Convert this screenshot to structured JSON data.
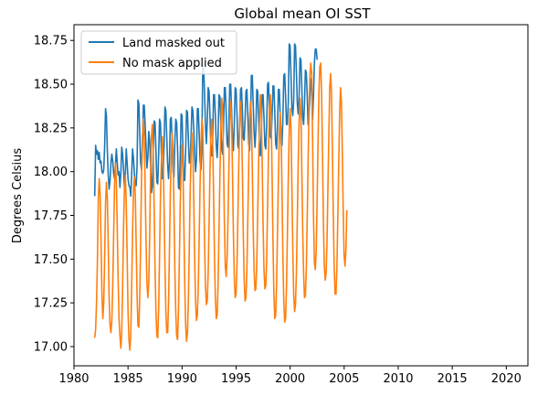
{
  "chart_data": {
    "type": "line",
    "title": "Global mean OI SST",
    "xlabel": "",
    "ylabel": "Degrees Celsius",
    "xlim": [
      1980,
      2022
    ],
    "ylim": [
      16.89,
      18.84
    ],
    "x_ticks": [
      1980,
      1985,
      1990,
      1995,
      2000,
      2005,
      2010,
      2015,
      2020
    ],
    "y_ticks": [
      17.0,
      17.25,
      17.5,
      17.75,
      18.0,
      18.25,
      18.5,
      18.75
    ],
    "x_tick_labels": [
      "1980",
      "1985",
      "1990",
      "1995",
      "2000",
      "2005",
      "2010",
      "2015",
      "2020"
    ],
    "y_tick_labels": [
      "17.00",
      "17.25",
      "17.50",
      "17.75",
      "18.00",
      "18.25",
      "18.50",
      "18.75"
    ],
    "grid": false,
    "legend_position": "top-left",
    "sampling": "monthly",
    "x_start": 1981.92,
    "x_step": 0.0833,
    "colors": {
      "land_masked": "#1f77b4",
      "no_mask": "#ff7f0e"
    },
    "series": [
      {
        "name": "Land masked out",
        "color": "#1f77b4",
        "values": [
          17.86,
          18.15,
          18.1,
          18.12,
          18.07,
          18.11,
          18.05,
          18.06,
          18.0,
          17.99,
          18.01,
          18.14,
          18.36,
          18.32,
          18.12,
          17.98,
          17.9,
          17.95,
          18.05,
          18.1,
          18.06,
          17.99,
          17.96,
          18.04,
          18.13,
          18.05,
          17.98,
          18.0,
          17.91,
          17.99,
          18.14,
          18.1,
          18.01,
          17.91,
          17.98,
          18.13,
          18.05,
          17.96,
          17.92,
          17.91,
          17.86,
          17.98,
          18.13,
          18.08,
          17.99,
          17.92,
          17.92,
          18.03,
          18.41,
          18.39,
          18.22,
          18.05,
          18.01,
          18.14,
          18.38,
          18.38,
          18.27,
          18.14,
          18.02,
          18.08,
          18.23,
          18.18,
          18.05,
          17.88,
          17.92,
          18.12,
          18.29,
          18.28,
          18.12,
          17.94,
          17.93,
          18.1,
          18.3,
          18.28,
          18.11,
          17.96,
          17.97,
          18.15,
          18.37,
          18.35,
          18.2,
          18.04,
          17.96,
          18.06,
          18.3,
          18.31,
          18.18,
          18.0,
          17.97,
          18.17,
          18.3,
          18.28,
          18.13,
          17.91,
          17.9,
          18.09,
          18.33,
          18.32,
          18.12,
          17.95,
          17.95,
          18.12,
          18.35,
          18.34,
          18.19,
          18.05,
          18.05,
          18.2,
          18.37,
          18.35,
          18.24,
          18.1,
          18.0,
          18.07,
          18.36,
          18.36,
          18.22,
          18.06,
          18.01,
          18.14,
          18.61,
          18.59,
          18.45,
          18.26,
          18.16,
          18.29,
          18.48,
          18.46,
          18.32,
          18.13,
          18.09,
          18.18,
          18.44,
          18.44,
          18.32,
          18.15,
          18.08,
          18.2,
          18.44,
          18.43,
          18.29,
          18.13,
          18.1,
          18.24,
          18.48,
          18.48,
          18.34,
          18.16,
          18.14,
          18.27,
          18.5,
          18.5,
          18.36,
          18.2,
          18.12,
          18.27,
          18.48,
          18.47,
          18.33,
          18.15,
          18.13,
          18.28,
          18.47,
          18.48,
          18.35,
          18.19,
          18.18,
          18.3,
          18.46,
          18.47,
          18.33,
          18.16,
          18.12,
          18.27,
          18.55,
          18.55,
          18.39,
          18.23,
          18.14,
          18.24,
          18.47,
          18.46,
          18.31,
          18.13,
          18.09,
          18.22,
          18.44,
          18.44,
          18.31,
          18.15,
          18.13,
          18.27,
          18.5,
          18.51,
          18.37,
          18.2,
          18.19,
          18.32,
          18.49,
          18.49,
          18.34,
          18.16,
          18.13,
          18.25,
          18.47,
          18.47,
          18.32,
          18.16,
          18.15,
          18.3,
          18.55,
          18.56,
          18.43,
          18.27,
          18.27,
          18.4,
          18.73,
          18.72,
          18.55,
          18.36,
          18.32,
          18.41,
          18.73,
          18.72,
          18.57,
          18.39,
          18.33,
          18.43,
          18.65,
          18.64,
          18.49,
          18.31,
          18.27,
          18.39,
          18.58,
          18.57,
          18.44,
          18.27,
          18.32,
          18.43,
          18.53,
          18.47,
          18.3,
          18.44,
          18.62,
          18.7,
          18.7,
          18.64
        ]
      },
      {
        "name": "No mask applied",
        "color": "#ff7f0e",
        "values": [
          17.05,
          17.1,
          17.25,
          17.5,
          17.85,
          17.96,
          17.87,
          17.6,
          17.3,
          17.16,
          17.25,
          17.5,
          17.82,
          17.94,
          17.85,
          17.58,
          17.28,
          17.12,
          17.08,
          17.15,
          17.35,
          17.63,
          17.92,
          18.05,
          17.95,
          17.68,
          17.38,
          17.16,
          17.06,
          16.99,
          17.08,
          17.35,
          17.68,
          17.9,
          17.98,
          17.82,
          17.52,
          17.2,
          17.04,
          16.98,
          17.06,
          17.32,
          17.65,
          17.88,
          17.97,
          17.88,
          17.6,
          17.3,
          17.12,
          17.11,
          17.28,
          17.6,
          17.98,
          18.2,
          18.3,
          18.2,
          17.92,
          17.6,
          17.36,
          17.28,
          17.36,
          17.62,
          17.98,
          18.2,
          18.27,
          18.12,
          17.8,
          17.45,
          17.2,
          17.06,
          17.05,
          17.22,
          17.52,
          17.85,
          18.05,
          18.2,
          18.1,
          17.8,
          17.46,
          17.2,
          17.08,
          17.08,
          17.25,
          17.55,
          17.88,
          18.08,
          18.22,
          18.12,
          17.8,
          17.45,
          17.2,
          17.06,
          17.04,
          17.2,
          17.5,
          17.82,
          18.02,
          18.15,
          18.02,
          17.7,
          17.36,
          17.12,
          17.03,
          17.08,
          17.26,
          17.56,
          17.88,
          18.1,
          18.22,
          18.12,
          17.84,
          17.5,
          17.26,
          17.15,
          17.18,
          17.34,
          17.62,
          17.92,
          18.15,
          18.3,
          18.25,
          17.95,
          17.6,
          17.35,
          17.24,
          17.26,
          17.42,
          17.7,
          18.0,
          18.2,
          18.3,
          18.18,
          17.88,
          17.52,
          17.28,
          17.16,
          17.18,
          17.35,
          17.65,
          17.96,
          18.22,
          18.42,
          18.38,
          18.08,
          17.72,
          17.46,
          17.4,
          17.5,
          17.72,
          18.02,
          18.28,
          18.4,
          18.3,
          18.0,
          17.65,
          17.4,
          17.28,
          17.3,
          17.46,
          17.74,
          18.04,
          18.28,
          18.4,
          18.3,
          18.0,
          17.64,
          17.38,
          17.26,
          17.28,
          17.44,
          17.72,
          18.02,
          18.3,
          18.4,
          18.32,
          18.02,
          17.68,
          17.44,
          17.32,
          17.33,
          17.48,
          17.75,
          18.04,
          18.28,
          18.44,
          18.35,
          18.04,
          17.7,
          17.44,
          17.33,
          17.35,
          17.5,
          17.8,
          18.1,
          18.34,
          18.44,
          18.32,
          17.98,
          17.6,
          17.3,
          17.16,
          17.18,
          17.36,
          17.65,
          17.96,
          18.2,
          18.34,
          18.23,
          17.9,
          17.52,
          17.26,
          17.14,
          17.16,
          17.34,
          17.64,
          17.96,
          18.22,
          18.36,
          18.25,
          17.92,
          17.56,
          17.3,
          17.2,
          17.24,
          17.42,
          17.72,
          18.04,
          18.28,
          18.42,
          18.35,
          18.02,
          17.67,
          17.42,
          17.28,
          17.29,
          17.44,
          17.72,
          18.05,
          18.35,
          18.55,
          18.62,
          18.56,
          18.18,
          17.75,
          17.48,
          17.44,
          17.55,
          17.82,
          18.15,
          18.45,
          18.6,
          18.62,
          18.45,
          18.1,
          17.72,
          17.46,
          17.38,
          17.42,
          17.6,
          17.9,
          18.2,
          18.48,
          18.56,
          18.45,
          18.12,
          17.75,
          17.45,
          17.3,
          17.3,
          17.46,
          17.74,
          18.04,
          18.32,
          18.48,
          18.4,
          18.12,
          17.78,
          17.52,
          17.46,
          17.55,
          17.78
        ]
      }
    ]
  }
}
